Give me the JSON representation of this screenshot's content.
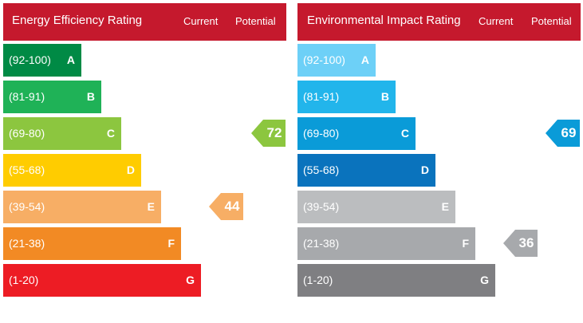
{
  "colors": {
    "header_bg": "#c5192d",
    "text_on_color": "#ffffff"
  },
  "energy": {
    "title": "Energy Efficiency Rating",
    "col_current": "Current",
    "col_potential": "Potential",
    "bands": [
      {
        "range": "(92-100)",
        "letter": "A",
        "color": "#008a45"
      },
      {
        "range": "(81-91)",
        "letter": "B",
        "color": "#1fb257"
      },
      {
        "range": "(69-80)",
        "letter": "C",
        "color": "#8cc63f"
      },
      {
        "range": "(55-68)",
        "letter": "D",
        "color": "#ffcc00"
      },
      {
        "range": "(39-54)",
        "letter": "E",
        "color": "#f7ae65"
      },
      {
        "range": "(21-38)",
        "letter": "F",
        "color": "#f28a24"
      },
      {
        "range": "(1-20)",
        "letter": "G",
        "color": "#ed1c24"
      }
    ],
    "current": {
      "value": "44",
      "band": "E",
      "color": "#f7ae65"
    },
    "potential": {
      "value": "72",
      "band": "C",
      "color": "#8cc63f"
    }
  },
  "environment": {
    "title": "Environmental Impact Rating",
    "col_current": "Current",
    "col_potential": "Potential",
    "bands": [
      {
        "range": "(92-100)",
        "letter": "A",
        "color": "#6dd0f7"
      },
      {
        "range": "(81-91)",
        "letter": "B",
        "color": "#22b5eb"
      },
      {
        "range": "(69-80)",
        "letter": "C",
        "color": "#0a9bd8"
      },
      {
        "range": "(55-68)",
        "letter": "D",
        "color": "#0a73bd"
      },
      {
        "range": "(39-54)",
        "letter": "E",
        "color": "#bbbdbf"
      },
      {
        "range": "(21-38)",
        "letter": "F",
        "color": "#a7a9ac"
      },
      {
        "range": "(1-20)",
        "letter": "G",
        "color": "#7f7f82"
      }
    ],
    "current": {
      "value": "36",
      "band": "F",
      "color": "#a7a9ac"
    },
    "potential": {
      "value": "69",
      "band": "C",
      "color": "#0a9bd8"
    }
  },
  "chart_data": [
    {
      "type": "table",
      "title": "Energy Efficiency Rating",
      "columns": [
        "Current",
        "Potential"
      ],
      "categories": [
        "(92-100) A",
        "(81-91) B",
        "(69-80) C",
        "(55-68) D",
        "(39-54) E",
        "(21-38) F",
        "(1-20) G"
      ],
      "current": 44,
      "potential": 72
    },
    {
      "type": "table",
      "title": "Environmental Impact Rating",
      "columns": [
        "Current",
        "Potential"
      ],
      "categories": [
        "(92-100) A",
        "(81-91) B",
        "(69-80) C",
        "(55-68) D",
        "(39-54) E",
        "(21-38) F",
        "(1-20) G"
      ],
      "current": 36,
      "potential": 69
    }
  ]
}
